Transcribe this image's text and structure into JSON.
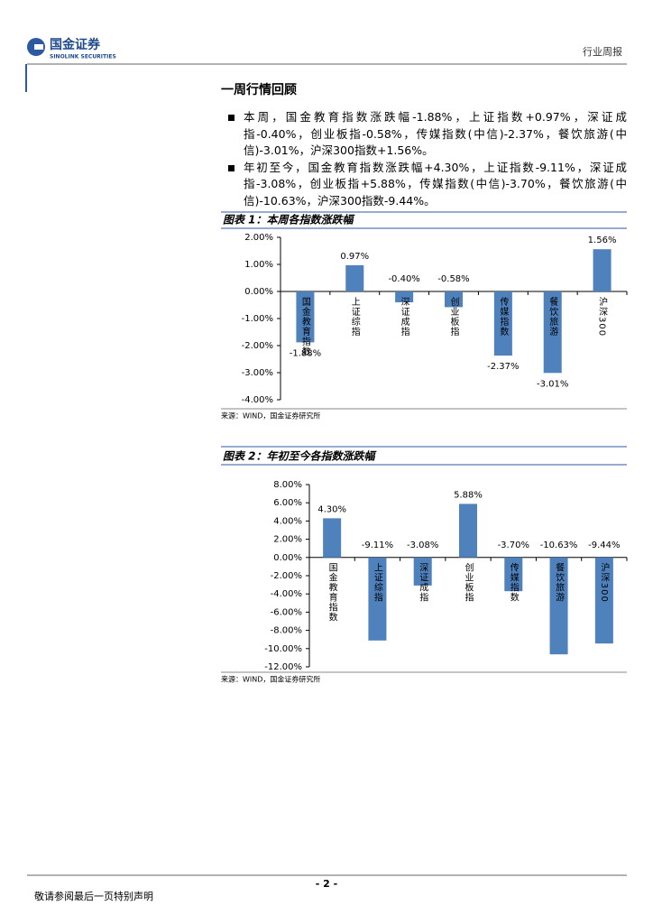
{
  "header": {
    "company": "国金证券",
    "company_en": "SINOLINK SECURITIES",
    "report_type": "行业周报"
  },
  "section": {
    "title": "一周行情回顾",
    "bullets": [
      "本周，国金教育指数涨跌幅-1.88%，上证指数+0.97%，深证成指-0.40%，创业板指-0.58%，传媒指数(中信)-2.37%，餐饮旅游(中信)-3.01%，沪深300指数+1.56%。",
      "年初至今，国金教育指数涨跌幅+4.30%，上证指数-9.11%，深证成指-3.08%，创业板指+5.88%，传媒指数(中信)-3.70%，餐饮旅游(中信)-10.63%，沪深300指数-9.44%。"
    ]
  },
  "figures": [
    {
      "title": "图表 1：本周各指数涨跌幅",
      "source": "来源：WIND，国金证券研究所",
      "chart_data": {
        "type": "bar",
        "color": "#4f81bd",
        "categories": [
          "国金教育指数",
          "上证综指",
          "深证成指",
          "创业板指",
          "传媒指数",
          "餐饮旅游",
          "沪深300"
        ],
        "values": [
          -1.88,
          0.97,
          -0.4,
          -0.58,
          -2.37,
          -3.01,
          1.56
        ],
        "value_labels": [
          "-1.88%",
          "0.97%",
          "-0.40%",
          "-0.58%",
          "-2.37%",
          "-3.01%",
          "1.56%"
        ],
        "ylim": [
          -4,
          2
        ],
        "yticks": [
          {
            "value": 2,
            "label": "2.00%"
          },
          {
            "value": 1,
            "label": "1.00%"
          },
          {
            "value": 0,
            "label": "0.00%"
          },
          {
            "value": -1,
            "label": "-1.00%"
          },
          {
            "value": -2,
            "label": "-2.00%"
          },
          {
            "value": -3,
            "label": "-3.00%"
          },
          {
            "value": -4,
            "label": "-4.00%"
          }
        ]
      }
    },
    {
      "title": "图表 2：年初至今各指数涨跌幅",
      "source": "来源：WIND，国金证券研究所",
      "chart_data": {
        "type": "bar",
        "color": "#4f81bd",
        "categories": [
          "国金教育指数",
          "上证综指",
          "深证成指",
          "创业板指",
          "传媒指数",
          "餐饮旅游",
          "沪深300"
        ],
        "values": [
          4.3,
          -9.11,
          -3.08,
          5.88,
          -3.7,
          -10.63,
          -9.44
        ],
        "value_labels": [
          "4.30%",
          "-9.11%",
          "-3.08%",
          "5.88%",
          "-3.70%",
          "-10.63%",
          "-9.44%"
        ],
        "ylim": [
          -12,
          8
        ],
        "yticks": [
          {
            "value": 8,
            "label": "8.00%"
          },
          {
            "value": 6,
            "label": "6.00%"
          },
          {
            "value": 4,
            "label": "4.00%"
          },
          {
            "value": 2,
            "label": "2.00%"
          },
          {
            "value": 0,
            "label": "0.00%"
          },
          {
            "value": -2,
            "label": "-2.00%"
          },
          {
            "value": -4,
            "label": "-4.00%"
          },
          {
            "value": -6,
            "label": "-6.00%"
          },
          {
            "value": -8,
            "label": "-8.00%"
          },
          {
            "value": -10,
            "label": "-10.00%"
          },
          {
            "value": -12,
            "label": "-12.00%"
          }
        ]
      }
    }
  ],
  "footer": {
    "page": "- 2 -",
    "disclaimer": "敬请参阅最后一页特别声明"
  }
}
